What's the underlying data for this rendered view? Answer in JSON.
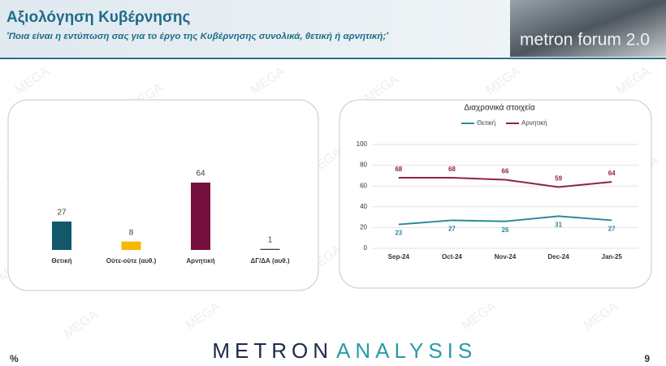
{
  "header": {
    "title": "Αξιολόγηση Κυβέρνησης",
    "subtitle": "'Ποια είναι η εντύπωση σας για το έργο της Κυβέρνησης συνολικά, θετική ή αρνητική;'",
    "logo": "metron forum 2.0"
  },
  "watermark": "MEGA",
  "footer": {
    "unit": "%",
    "brand_left": "METRON",
    "brand_right": "ANALYSIS",
    "page": "9"
  },
  "chart_data": [
    {
      "type": "bar",
      "categories": [
        "Θετική",
        "Ούτε-ούτε (αυθ.)",
        "Αρνητική",
        "ΔΓ/ΔΑ (αυθ.)"
      ],
      "values": [
        27,
        8,
        64,
        1
      ],
      "colors": [
        "#12586a",
        "#f5b800",
        "#75103e",
        "#404040"
      ]
    },
    {
      "type": "line",
      "title": "Διαχρονικά στοιχεία",
      "categories": [
        "Sep-24",
        "Oct-24",
        "Nov-24",
        "Dec-24",
        "Jan-25"
      ],
      "series": [
        {
          "name": "Θετική",
          "color": "#2b8a99",
          "values": [
            23,
            27,
            26,
            31,
            27
          ]
        },
        {
          "name": "Αρνητική",
          "color": "#8e2150",
          "values": [
            68,
            68,
            66,
            59,
            64
          ]
        }
      ],
      "ylim": [
        0,
        100
      ],
      "yticks": [
        0,
        20,
        40,
        60,
        80,
        100
      ],
      "grid": true,
      "legend": "top"
    }
  ]
}
